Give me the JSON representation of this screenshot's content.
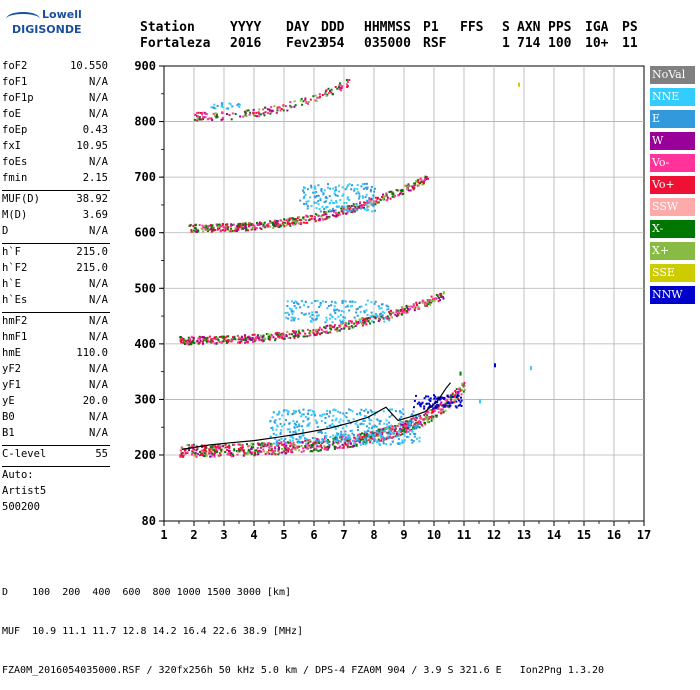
{
  "logo": {
    "line1": "Lowell",
    "line2": "DIGISONDE"
  },
  "header": {
    "line1": [
      "Station",
      "YYYY",
      "DAY",
      "DDD",
      "HHMMSS",
      "P1",
      "FFS",
      "S",
      "AXN",
      "PPS",
      "IGA",
      "PS"
    ],
    "line2": [
      "Fortaleza",
      "2016",
      "Fev23",
      "054",
      "035000",
      "RSF",
      "",
      "1",
      "714",
      "100",
      "10+",
      "11"
    ]
  },
  "params": [
    {
      "key": "foF2",
      "value": "10.550"
    },
    {
      "key": "foF1",
      "value": "N/A"
    },
    {
      "key": "foF1p",
      "value": "N/A"
    },
    {
      "key": "foE",
      "value": "N/A"
    },
    {
      "key": "foEp",
      "value": "0.43"
    },
    {
      "key": "fxI",
      "value": "10.95"
    },
    {
      "key": "foEs",
      "value": "N/A"
    },
    {
      "key": "fmin",
      "value": "2.15"
    },
    {
      "sep": true
    },
    {
      "key": "MUF(D)",
      "value": "38.92"
    },
    {
      "key": "M(D)",
      "value": "3.69"
    },
    {
      "key": "D",
      "value": "N/A"
    },
    {
      "sep": true
    },
    {
      "key": "h`F",
      "value": "215.0"
    },
    {
      "key": "h`F2",
      "value": "215.0"
    },
    {
      "key": "h`E",
      "value": "N/A"
    },
    {
      "key": "h`Es",
      "value": "N/A"
    },
    {
      "sep": true
    },
    {
      "key": "hmF2",
      "value": "N/A"
    },
    {
      "key": "hmF1",
      "value": "N/A"
    },
    {
      "key": "hmE",
      "value": "110.0"
    },
    {
      "key": "yF2",
      "value": "N/A"
    },
    {
      "key": "yF1",
      "value": "N/A"
    },
    {
      "key": "yE",
      "value": "20.0"
    },
    {
      "key": "B0",
      "value": "N/A"
    },
    {
      "key": "B1",
      "value": "N/A"
    },
    {
      "sep": true
    },
    {
      "key": "C-level",
      "value": "55"
    },
    {
      "sep": true
    },
    {
      "text": "Auto:"
    },
    {
      "text": "Artist5"
    },
    {
      "text": "500200"
    }
  ],
  "legend": [
    {
      "label": "NoVal",
      "color": "#808080"
    },
    {
      "label": "NNE",
      "color": "#33ccff"
    },
    {
      "label": "E",
      "color": "#3399dd"
    },
    {
      "label": "W",
      "color": "#990099"
    },
    {
      "label": "Vo-",
      "color": "#ff3399"
    },
    {
      "label": "Vo+",
      "color": "#ee1133"
    },
    {
      "label": "SSW",
      "color": "#ffaaaa"
    },
    {
      "label": "X-",
      "color": "#007700"
    },
    {
      "label": "X+",
      "color": "#88bb44"
    },
    {
      "label": "SSE",
      "color": "#cccc00"
    },
    {
      "label": "NNW",
      "color": "#0000cc"
    }
  ],
  "footer": {
    "d_line": "D    100  200  400  600  800 1000 1500 3000 [km]",
    "muf_line": "MUF  10.9 11.1 11.7 12.8 14.2 16.4 22.6 38.9 [MHz]",
    "file_line": "FZA0M_2016054035000.RSF / 320fx256h 50 kHz 5.0 km / DPS-4 FZA0M 904 / 3.9 S 321.6 E   Ion2Png 1.3.20"
  },
  "chart_data": {
    "type": "scatter",
    "x_ticks": [
      "1",
      "2",
      "3",
      "4",
      "5",
      "6",
      "7",
      "8",
      "9",
      "10",
      "11",
      "12",
      "13",
      "14",
      "15",
      "16",
      "17"
    ],
    "y_ticks": [
      "80",
      "200",
      "300",
      "400",
      "500",
      "600",
      "700",
      "800",
      "900"
    ],
    "xlim": [
      1,
      17
    ],
    "ylim": [
      80,
      900
    ],
    "grid": true,
    "traces": [
      {
        "order": 1,
        "fmin": 1.5,
        "fmax": 11.0,
        "h0": 205,
        "k": 3.2,
        "scatter_f": [
          4.5,
          9.5
        ],
        "scatter_h": [
          220,
          300
        ]
      },
      {
        "order": 2,
        "fmin": 1.5,
        "fmax": 10.3,
        "h0": 405,
        "k": 4.5,
        "scatter_f": [
          5.0,
          8.5
        ],
        "scatter_h": [
          440,
          480
        ]
      },
      {
        "order": 3,
        "fmin": 1.8,
        "fmax": 9.8,
        "h0": 607,
        "k": 5.0,
        "scatter_f": [
          5.5,
          8.0
        ],
        "scatter_h": [
          640,
          690
        ]
      },
      {
        "order": 4,
        "fmin": 2.0,
        "fmax": 7.2,
        "h0": 808,
        "k": 3.5,
        "scatter_f": [
          2.5,
          3.5
        ],
        "scatter_h": [
          825,
          835
        ]
      }
    ],
    "scaled_trace": [
      {
        "f": 1.6,
        "h": 210
      },
      {
        "f": 2.5,
        "h": 218
      },
      {
        "f": 3.2,
        "h": 222
      },
      {
        "f": 4.0,
        "h": 226
      },
      {
        "f": 4.8,
        "h": 232
      },
      {
        "f": 5.5,
        "h": 238
      },
      {
        "f": 6.5,
        "h": 248
      },
      {
        "f": 7.2,
        "h": 258
      },
      {
        "f": 7.8,
        "h": 268
      },
      {
        "f": 8.4,
        "h": 286
      },
      {
        "f": 8.8,
        "h": 262
      },
      {
        "f": 9.3,
        "h": 270
      },
      {
        "f": 9.7,
        "h": 278
      },
      {
        "f": 10.1,
        "h": 296
      },
      {
        "f": 10.4,
        "h": 320
      },
      {
        "f": 10.55,
        "h": 330
      }
    ],
    "isolated_points": [
      {
        "f": 12.0,
        "h": 365,
        "color": "#0000cc"
      },
      {
        "f": 12.8,
        "h": 870,
        "color": "#cccc00"
      },
      {
        "f": 13.2,
        "h": 360,
        "color": "#33ccff"
      },
      {
        "f": 11.5,
        "h": 300,
        "color": "#33ccff"
      },
      {
        "f": 10.85,
        "h": 350,
        "color": "#007700"
      }
    ]
  }
}
